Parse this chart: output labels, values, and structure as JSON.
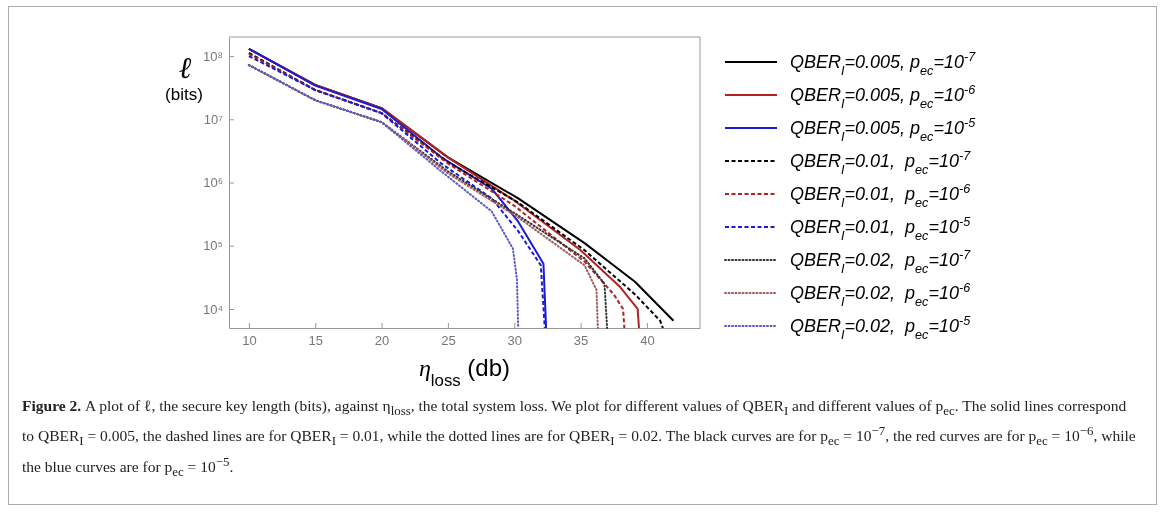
{
  "chart_data": {
    "type": "line",
    "ylabel": "ℓ (bits)",
    "xlabel": "η$_{loss}$ (db)",
    "log": true,
    "legend": "right",
    "grid": false,
    "xlim": [
      8.5,
      44
    ],
    "xticks": [
      10,
      15,
      20,
      25,
      30,
      35,
      40
    ],
    "ylim": [
      5000,
      200000000
    ],
    "yticks": [
      {
        "value": 10000,
        "label": "10⁴"
      },
      {
        "value": 100000,
        "label": "10⁵"
      },
      {
        "value": 1000000,
        "label": "10⁶"
      },
      {
        "value": 10000000,
        "label": "10⁷"
      },
      {
        "value": 100000000,
        "label": "10⁸"
      }
    ],
    "series": [
      {
        "name": "QBER$_{I}$=0.005, p$_{ec}$=10$^{-7}$",
        "color": "#000000",
        "line_style": "solid",
        "x": [
          10,
          15,
          20,
          25,
          30.3,
          35.3,
          39.1,
          42
        ],
        "values": [
          130000000,
          35000000,
          15000000,
          2500000,
          560000,
          110000,
          27000,
          6500
        ]
      },
      {
        "name": "QBER$_{I}$=0.005, p$_{ec}$=10$^{-6}$",
        "color": "#b22222",
        "line_style": "solid",
        "x": [
          10,
          15,
          20,
          25,
          30,
          35,
          38,
          39.3,
          39.4
        ],
        "values": [
          130000000,
          35000000,
          15000000,
          2500000,
          520000,
          85000,
          22000,
          10000,
          5000
        ]
      },
      {
        "name": "QBER$_{I}$=0.005, p$_{ec}$=10$^{-5}$",
        "color": "#1a1adb",
        "line_style": "solid",
        "x": [
          10,
          15,
          20,
          24.5,
          28.3,
          30.3,
          32.2,
          32.4
        ],
        "values": [
          130000000,
          34000000,
          14500000,
          2500000,
          800000,
          240000,
          52000,
          5000
        ]
      },
      {
        "name": "QBER$_{I}$=0.01,  p$_{ec}$=10$^{-7}$",
        "color": "#000000",
        "line_style": "dashed",
        "x": [
          10,
          15,
          20,
          25,
          30.3,
          35.3,
          39.1,
          41,
          41.2
        ],
        "values": [
          112000000,
          29000000,
          12500000,
          2100000,
          480000,
          85000,
          17000,
          6500,
          5000
        ]
      },
      {
        "name": "QBER$_{I}$=0.01,  p$_{ec}$=10$^{-6}$",
        "color": "#b22222",
        "line_style": "dashed",
        "x": [
          10,
          15,
          20,
          25,
          30,
          35.3,
          37.5,
          38.2,
          38.3
        ],
        "values": [
          108000000,
          29000000,
          12500000,
          2000000,
          430000,
          56000,
          17000,
          10000,
          5000
        ]
      },
      {
        "name": "QBER$_{I}$=0.01,  p$_{ec}$=10$^{-5}$",
        "color": "#1a1adb",
        "line_style": "dashed",
        "x": [
          10,
          15,
          20,
          24.5,
          28.3,
          30.3,
          32,
          32.3
        ],
        "values": [
          100000000,
          29000000,
          12500000,
          2000000,
          560000,
          170000,
          49000,
          5000
        ]
      },
      {
        "name": "QBER$_{I}$=0.02,  p$_{ec}$=10$^{-7}$",
        "color": "#333333",
        "line_style": "dotted",
        "x": [
          10,
          15,
          20,
          25,
          30.3,
          35.3,
          36.8,
          37
        ],
        "values": [
          72000000,
          20000000,
          9000000,
          1500000,
          300000,
          63000,
          25000,
          5000
        ]
      },
      {
        "name": "QBER$_{I}$=0.02,  p$_{ec}$=10$^{-6}$",
        "color": "#a05a5a",
        "line_style": "dotted",
        "x": [
          10,
          15,
          20,
          25,
          30.3,
          35.3,
          36.2,
          36.3
        ],
        "values": [
          72000000,
          20000000,
          9000000,
          1400000,
          280000,
          49000,
          20000,
          5000
        ]
      },
      {
        "name": "QBER$_{I}$=0.02,  p$_{ec}$=10$^{-5}$",
        "color": "#5a5ac0",
        "line_style": "dotted",
        "x": [
          10,
          15,
          20,
          24.5,
          28.3,
          29.9,
          30.2,
          30.3
        ],
        "values": [
          72000000,
          20000000,
          9000000,
          1500000,
          350000,
          90000,
          30000,
          5000
        ]
      }
    ],
    "annotations": [
      "Figure 2.",
      "A plot of ℓ, the secure key length (bits), against η$_{loss}$, the total system loss. We plot for different values of QBER$_{I}$ and different values of p$_{ec}$. The solid lines correspond to QBER$_{I}$ = 0.005, the dashed lines are for QBER$_{I}$ = 0.01, while the dotted lines are for QBER$_{I}$ = 0.02. The black curves are for p$_{ec}$ = 10$^{−7}$, the red curves are for p$_{ec}$ = 10$^{−6}$, while the blue curves are for p$_{ec}$ = 10$^{−5}$."
    ]
  }
}
